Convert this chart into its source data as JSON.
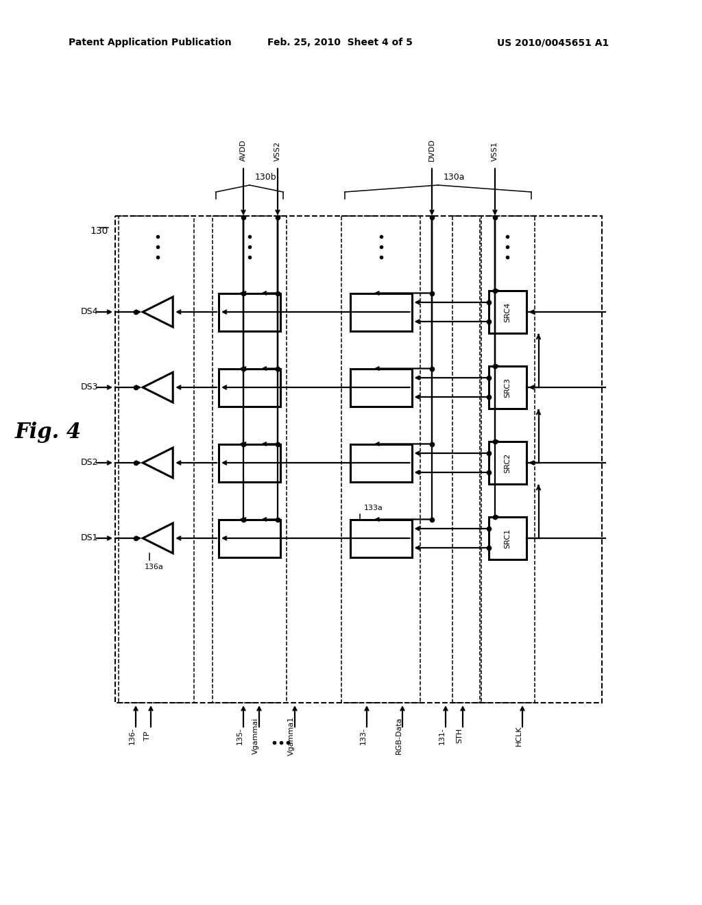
{
  "bg": "#ffffff",
  "header_left": "Patent Application Publication",
  "header_mid": "Feb. 25, 2010  Sheet 4 of 5",
  "header_right": "US 2010/0045651 A1",
  "fig_label": "Fig. 4",
  "label_130": "130",
  "label_130a": "130a",
  "label_130b": "130b",
  "label_AVDD": "AVDD",
  "label_VSS2": "VSS2",
  "label_DVDD": "DVDD",
  "label_VSS1": "VSS1",
  "ds_labels": [
    "DS4",
    "DS3",
    "DS2",
    "DS1"
  ],
  "src_labels": [
    "SRC4",
    "SRC3",
    "SRC2",
    "SRC1"
  ],
  "bottom_left_labels": [
    "136-",
    "TP",
    "135-",
    "Vgammai",
    "Vgamma1"
  ],
  "bottom_right_labels": [
    "133-",
    "RGB-Data",
    "131-",
    "STH",
    "HCLK"
  ],
  "label_136a": "136a",
  "label_133a": "133a"
}
